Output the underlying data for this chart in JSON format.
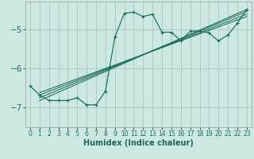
{
  "xlabel": "Humidex (Indice chaleur)",
  "bg_color": "#cce8e0",
  "grid_color": "#aaccC4",
  "line_color": "#1a6b5a",
  "xlim": [
    -0.5,
    23.5
  ],
  "ylim": [
    -7.5,
    -4.3
  ],
  "xticks": [
    0,
    1,
    2,
    3,
    4,
    5,
    6,
    7,
    8,
    9,
    10,
    11,
    12,
    13,
    14,
    15,
    16,
    17,
    18,
    19,
    20,
    21,
    22,
    23
  ],
  "yticks": [
    -7,
    -6,
    -5
  ],
  "main_line_x": [
    0,
    1,
    2,
    3,
    4,
    5,
    6,
    7,
    8,
    9,
    10,
    11,
    12,
    13,
    14,
    15,
    16,
    17,
    18,
    19,
    20,
    21,
    22,
    23
  ],
  "main_line_y": [
    -6.45,
    -6.68,
    -6.82,
    -6.82,
    -6.82,
    -6.75,
    -6.93,
    -6.93,
    -6.58,
    -5.2,
    -4.6,
    -4.57,
    -4.68,
    -4.62,
    -5.08,
    -5.08,
    -5.3,
    -5.05,
    -5.05,
    -5.1,
    -5.3,
    -5.15,
    -4.85,
    -4.5
  ],
  "reg_lines": [
    {
      "x": [
        1,
        23
      ],
      "y": [
        -6.82,
        -4.5
      ]
    },
    {
      "x": [
        1,
        23
      ],
      "y": [
        -6.75,
        -4.55
      ]
    },
    {
      "x": [
        1,
        23
      ],
      "y": [
        -6.68,
        -4.62
      ]
    },
    {
      "x": [
        1,
        23
      ],
      "y": [
        -6.62,
        -4.68
      ]
    }
  ]
}
